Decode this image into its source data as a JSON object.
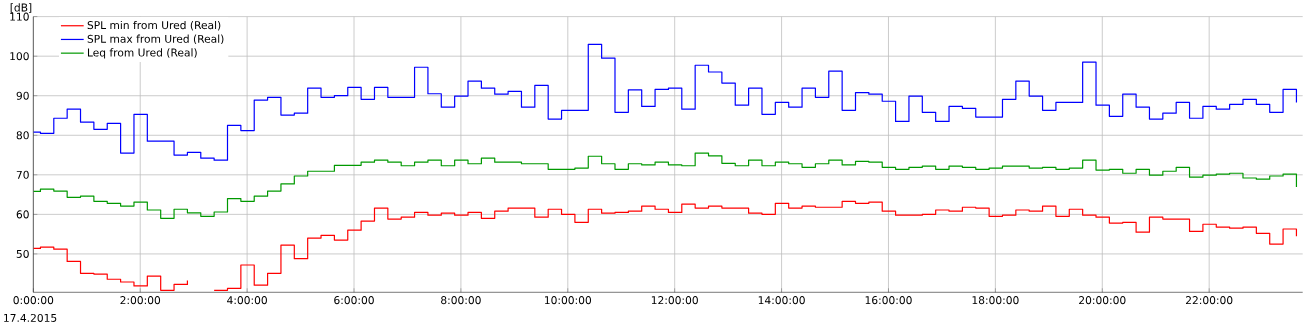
{
  "chart_data": {
    "type": "step",
    "ylabel": "[dB]",
    "annotations": [
      "17.4.2015"
    ],
    "x": [
      0,
      0.133,
      0.383,
      0.633,
      0.883,
      1.133,
      1.383,
      1.633,
      1.883,
      2.133,
      2.383,
      2.633,
      2.883,
      3.133,
      3.383,
      3.633,
      3.883,
      4.133,
      4.383,
      4.633,
      4.883,
      5.133,
      5.383,
      5.633,
      5.883,
      6.133,
      6.383,
      6.633,
      6.883,
      7.133,
      7.383,
      7.633,
      7.883,
      8.133,
      8.383,
      8.633,
      8.883,
      9.133,
      9.383,
      9.633,
      9.883,
      10.133,
      10.383,
      10.633,
      10.883,
      11.133,
      11.383,
      11.633,
      11.883,
      12.133,
      12.383,
      12.633,
      12.883,
      13.133,
      13.383,
      13.633,
      13.883,
      14.133,
      14.383,
      14.633,
      14.883,
      15.133,
      15.383,
      15.633,
      15.883,
      16.133,
      16.383,
      16.633,
      16.883,
      17.133,
      17.383,
      17.633,
      17.883,
      18.133,
      18.383,
      18.633,
      18.883,
      19.133,
      19.383,
      19.633,
      19.883,
      20.133,
      20.383,
      20.633,
      20.883,
      21.133,
      21.383,
      21.633,
      21.883,
      22.133,
      22.383,
      22.633,
      22.883,
      23.133,
      23.383,
      23.633
    ],
    "series": [
      {
        "name": "SPL min from Ured (Real)",
        "color": "#ff0000",
        "values": [
          51.4,
          51.7,
          51.2,
          48.1,
          45.1,
          44.9,
          43.6,
          42.9,
          41.9,
          44.4,
          40.8,
          42.3,
          43.3,
          null,
          40.8,
          41.3,
          47.2,
          42.1,
          45.1,
          52.2,
          48.8,
          54.0,
          54.7,
          53.5,
          56.0,
          58.3,
          61.6,
          58.8,
          59.3,
          60.5,
          59.8,
          60.3,
          59.8,
          60.5,
          59.0,
          60.8,
          61.6,
          61.6,
          59.3,
          61.3,
          60.0,
          58.0,
          61.3,
          60.3,
          60.5,
          60.8,
          62.1,
          61.3,
          60.5,
          62.6,
          61.6,
          62.1,
          61.6,
          61.6,
          60.3,
          60.0,
          62.8,
          61.6,
          62.1,
          61.8,
          61.8,
          63.3,
          62.8,
          63.1,
          60.8,
          59.8,
          59.8,
          60.0,
          61.1,
          60.8,
          61.8,
          61.6,
          59.5,
          59.8,
          61.1,
          60.8,
          62.1,
          59.5,
          61.3,
          59.8,
          59.3,
          57.8,
          58.0,
          55.5,
          59.3,
          58.8,
          58.8,
          55.7,
          57.5,
          56.8,
          56.5,
          56.8,
          55.2,
          52.5,
          56.3,
          54.5
        ]
      },
      {
        "name": "SPL max from Ured (Real)",
        "color": "#0000ff",
        "values": [
          80.8,
          80.5,
          84.3,
          86.6,
          83.3,
          81.5,
          83.0,
          75.5,
          85.3,
          78.5,
          78.5,
          75.0,
          75.7,
          74.2,
          73.7,
          82.5,
          81.2,
          88.9,
          89.6,
          85.1,
          85.6,
          91.9,
          89.6,
          90.0,
          92.1,
          89.1,
          92.1,
          89.6,
          89.6,
          97.2,
          90.5,
          87.1,
          89.9,
          93.7,
          91.9,
          90.4,
          91.1,
          87.1,
          92.6,
          84.1,
          86.3,
          86.3,
          103.0,
          99.5,
          85.8,
          91.5,
          87.3,
          91.6,
          91.9,
          86.6,
          97.7,
          96.0,
          93.2,
          87.6,
          91.9,
          85.3,
          88.3,
          87.1,
          91.9,
          89.6,
          96.2,
          86.3,
          90.8,
          90.4,
          88.6,
          83.5,
          89.9,
          85.8,
          83.5,
          87.3,
          86.8,
          84.6,
          84.6,
          89.1,
          93.7,
          89.9,
          86.3,
          88.3,
          88.3,
          98.5,
          87.6,
          84.8,
          90.4,
          87.1,
          84.1,
          85.6,
          88.3,
          84.3,
          87.3,
          86.6,
          87.8,
          89.1,
          87.8,
          85.8,
          91.6,
          88.3
        ]
      },
      {
        "name": "Leq from Ured (Real)",
        "color": "#009900",
        "values": [
          65.8,
          66.4,
          65.9,
          64.3,
          64.6,
          63.3,
          62.8,
          62.1,
          63.1,
          61.1,
          59.0,
          61.3,
          60.4,
          59.5,
          60.6,
          64.0,
          63.3,
          64.6,
          65.9,
          67.7,
          69.7,
          70.9,
          70.9,
          72.4,
          72.4,
          73.2,
          73.7,
          73.2,
          72.3,
          73.2,
          73.7,
          72.3,
          73.7,
          72.8,
          74.2,
          73.2,
          73.2,
          72.8,
          72.8,
          71.4,
          71.4,
          71.7,
          74.7,
          72.8,
          71.4,
          72.8,
          72.5,
          73.2,
          72.5,
          72.3,
          75.5,
          74.8,
          72.9,
          72.3,
          73.7,
          72.3,
          73.2,
          72.8,
          71.9,
          72.8,
          73.7,
          72.5,
          73.4,
          73.2,
          71.9,
          71.4,
          71.9,
          72.2,
          71.4,
          72.2,
          71.9,
          71.4,
          71.7,
          72.2,
          72.2,
          71.7,
          71.9,
          71.4,
          71.7,
          73.7,
          71.2,
          71.4,
          70.4,
          71.4,
          69.9,
          70.9,
          71.9,
          69.4,
          69.9,
          70.2,
          70.4,
          69.2,
          68.9,
          69.7,
          70.2,
          66.9
        ]
      }
    ],
    "xlim": [
      0,
      23.75
    ],
    "ylim": [
      40.3,
      110
    ],
    "xticks": [
      {
        "value": 0,
        "label": "0:00:00"
      },
      {
        "value": 2,
        "label": "2:00:00"
      },
      {
        "value": 4,
        "label": "4:00:00"
      },
      {
        "value": 6,
        "label": "6:00:00"
      },
      {
        "value": 8,
        "label": "8:00:00"
      },
      {
        "value": 10,
        "label": "10:00:00"
      },
      {
        "value": 12,
        "label": "12:00:00"
      },
      {
        "value": 14,
        "label": "14:00:00"
      },
      {
        "value": 16,
        "label": "16:00:00"
      },
      {
        "value": 18,
        "label": "18:00:00"
      },
      {
        "value": 20,
        "label": "20:00:00"
      },
      {
        "value": 22,
        "label": "22:00:00"
      }
    ],
    "yticks": [
      50,
      60,
      70,
      80,
      90,
      100,
      110
    ],
    "grid": true,
    "legend": "top left"
  }
}
